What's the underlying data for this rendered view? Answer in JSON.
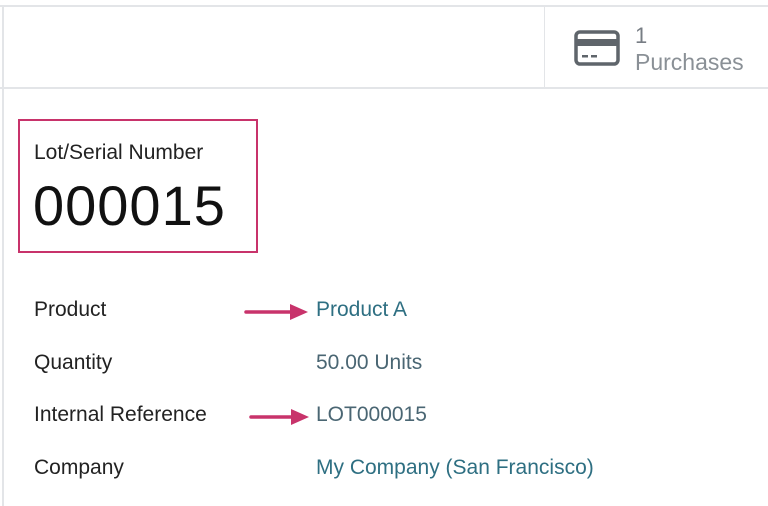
{
  "button_box": {
    "purchases": {
      "count": "1",
      "label": "Purchases",
      "icon": "credit-card-icon"
    }
  },
  "title": {
    "caption": "Lot/Serial Number",
    "value": "000015"
  },
  "fields": [
    {
      "label": "Product",
      "value": "Product A",
      "link": true,
      "arrow": true
    },
    {
      "label": "Quantity",
      "value": "50.00 Units",
      "link": false,
      "arrow": false
    },
    {
      "label": "Internal Reference",
      "value": "LOT000015",
      "link": false,
      "arrow": true
    },
    {
      "label": "Company",
      "value": "My Company (San Francisco)",
      "link": true,
      "arrow": false
    }
  ],
  "colors": {
    "highlight": "#c8336b",
    "link": "#2e6f82"
  }
}
